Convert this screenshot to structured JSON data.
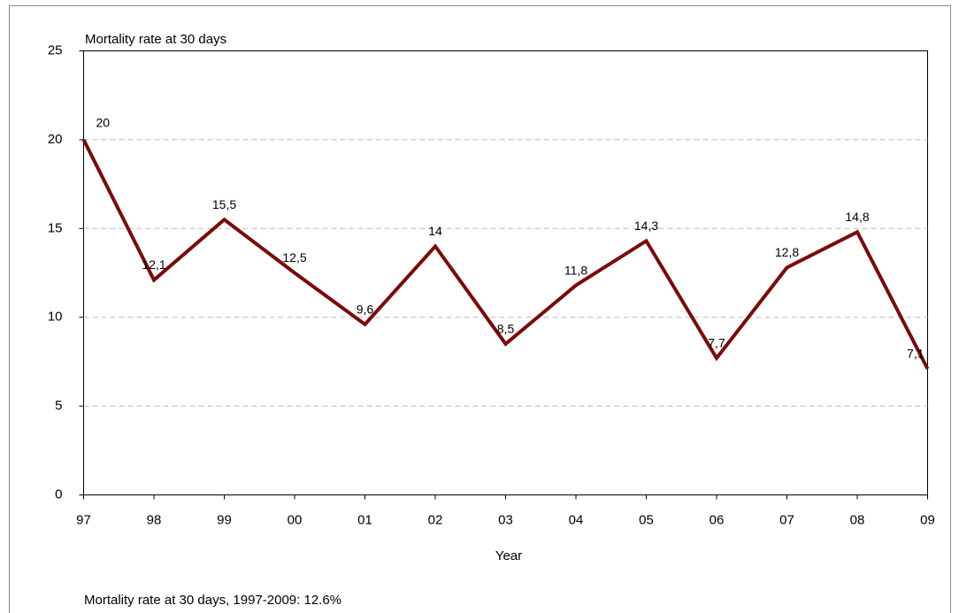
{
  "chart_data": {
    "type": "line",
    "y_label": "Mortality rate at 30 days",
    "x_label": "Year",
    "annotation": "Mortality rate at 30 days, 1997-2009: 12.6%",
    "categories": [
      "97",
      "98",
      "99",
      "00",
      "01",
      "02",
      "03",
      "04",
      "05",
      "06",
      "07",
      "08",
      "09"
    ],
    "values": [
      20,
      12.1,
      15.5,
      12.5,
      9.6,
      14,
      8.5,
      11.8,
      14.3,
      7.7,
      12.8,
      14.8,
      7.1
    ],
    "value_labels": [
      "20",
      "12,1",
      "15,5",
      "12,5",
      "9,6",
      "14",
      "8,5",
      "11,8",
      "14,3",
      "7,7",
      "12,8",
      "14,8",
      "7,1"
    ],
    "color": "#7b0a0a",
    "ylim": [
      0,
      25
    ],
    "yticks": [
      0,
      5,
      10,
      15,
      20,
      25
    ],
    "grid": true
  }
}
